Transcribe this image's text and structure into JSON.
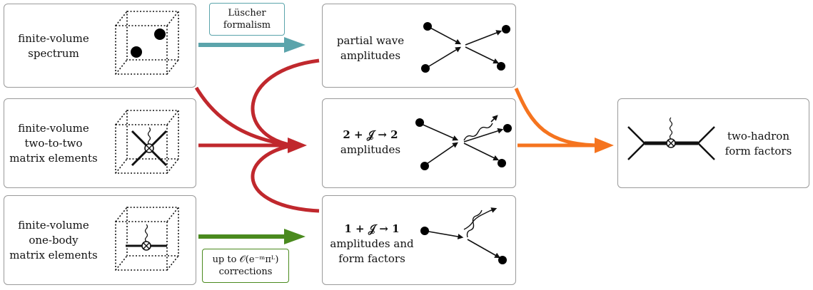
{
  "colors": {
    "teal": "#5ba4ab",
    "red": "#c0282d",
    "orange": "#f5741f",
    "green": "#4a8a1e",
    "box_border": "#9a9a9a"
  },
  "boxes": {
    "fv_spectrum": [
      "finite-volume",
      "spectrum"
    ],
    "fv_two_to_two": [
      "finite-volume",
      "two-to-two",
      "matrix elements"
    ],
    "fv_one_body": [
      "finite-volume",
      "one-body",
      "matrix elements"
    ],
    "partial_wave": [
      "partial wave",
      "amplitudes"
    ],
    "two_j_two": {
      "line1": "2 + 𝒥 → 2",
      "line2": "amplitudes"
    },
    "one_j_one": {
      "line1": "1 + 𝒥 → 1",
      "line2": "amplitudes and",
      "line3": "form factors"
    },
    "two_hadron": [
      "two-hadron",
      "form factors"
    ]
  },
  "tags": {
    "luscher": [
      "Lüscher",
      "formalism"
    ],
    "corrections": [
      "up to 𝒪(e⁻ᵐπᴸ)",
      "corrections"
    ]
  },
  "icons": [
    "cube-icon",
    "scattering-diagram-icon",
    "vertex-diagram-icon"
  ]
}
